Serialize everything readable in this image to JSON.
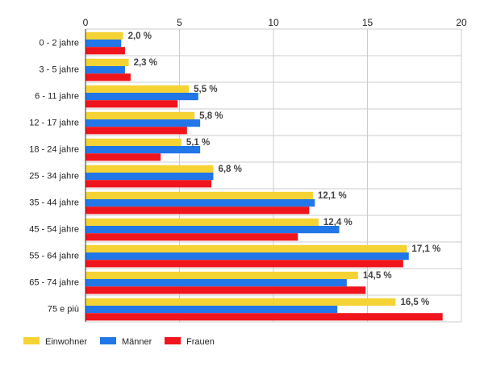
{
  "chart_data": {
    "type": "bar",
    "orientation": "horizontal",
    "title": "",
    "xlabel": "",
    "ylabel": "",
    "xlim": [
      0,
      20
    ],
    "x_ticks": [
      0,
      5,
      10,
      15,
      20
    ],
    "grid": true,
    "legend_position": "bottom-left",
    "categories": [
      "0 - 2 jahre",
      "3 - 5 jahre",
      "6 - 11 jahre",
      "12 - 17 jahre",
      "18 - 24 jahre",
      "25 - 34 jahre",
      "35 - 44 jahre",
      "45 - 54 jahre",
      "55 - 64 jahre",
      "65 - 74 jahre",
      "75 e più"
    ],
    "series": [
      {
        "name": "Einwohner",
        "color": "#f5d335",
        "values": [
          2.0,
          2.3,
          5.5,
          5.8,
          5.1,
          6.8,
          12.1,
          12.4,
          17.1,
          14.5,
          16.5
        ]
      },
      {
        "name": "Männer",
        "color": "#2176e8",
        "values": [
          1.9,
          2.1,
          6.0,
          6.1,
          6.1,
          6.8,
          12.2,
          13.5,
          17.2,
          13.9,
          13.4
        ]
      },
      {
        "name": "Frauen",
        "color": "#f0141c",
        "values": [
          2.1,
          2.4,
          4.9,
          5.4,
          4.0,
          6.7,
          11.9,
          11.3,
          16.9,
          14.9,
          19.0
        ]
      }
    ],
    "data_labels": [
      "2,0 %",
      "2,3 %",
      "5,5 %",
      "5,8 %",
      "5,1 %",
      "6,8 %",
      "12,1 %",
      "12,4 %",
      "17,1 %",
      "14,5 %",
      "16,5 %"
    ]
  }
}
